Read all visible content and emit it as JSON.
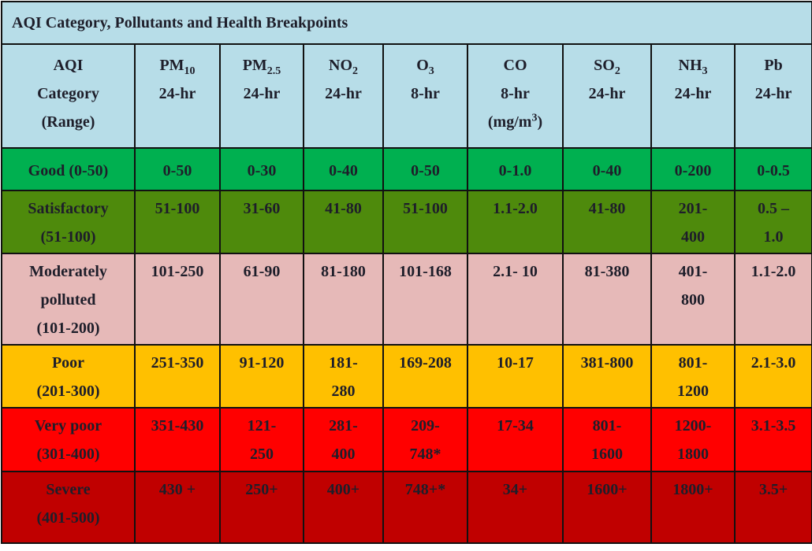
{
  "title": "AQI Category, Pollutants and Health Breakpoints",
  "table": {
    "header": [
      {
        "lines": [
          "AQI",
          "Category",
          "(Range)"
        ]
      },
      {
        "lines": [
          {
            "base": "PM",
            "sub": "10"
          },
          "24-hr"
        ]
      },
      {
        "lines": [
          {
            "base": "PM",
            "sub": "2.5"
          },
          "24-hr"
        ]
      },
      {
        "lines": [
          {
            "base": "NO",
            "sub": "2"
          },
          "24-hr"
        ]
      },
      {
        "lines": [
          {
            "base": "O",
            "sub": "3"
          },
          "8-hr"
        ]
      },
      {
        "lines": [
          "CO",
          "8-hr",
          {
            "base": "(mg/m",
            "sup": "3",
            "after": ")"
          }
        ]
      },
      {
        "lines": [
          {
            "base": "SO",
            "sub": "2"
          },
          "24-hr"
        ]
      },
      {
        "lines": [
          {
            "base": "NH",
            "sub": "3"
          },
          "24-hr"
        ]
      },
      {
        "lines": [
          "Pb",
          "24-hr"
        ]
      }
    ],
    "rows": [
      {
        "color": "#00b050",
        "cells": [
          [
            "Good (0-50)"
          ],
          [
            "0-50"
          ],
          [
            "0-30"
          ],
          [
            "0-40"
          ],
          [
            "0-50"
          ],
          [
            "0-1.0"
          ],
          [
            "0-40"
          ],
          [
            "0-200"
          ],
          [
            "0-0.5"
          ]
        ]
      },
      {
        "color": "#4e8a0c",
        "cells": [
          [
            "Satisfactory",
            "(51-100)"
          ],
          [
            "51-100"
          ],
          [
            "31-60"
          ],
          [
            "41-80"
          ],
          [
            "51-100"
          ],
          [
            "1.1-2.0"
          ],
          [
            "41-80"
          ],
          [
            "201-",
            "400"
          ],
          [
            "0.5 –",
            "1.0"
          ]
        ]
      },
      {
        "color": "#e6b9b8",
        "cells": [
          [
            "Moderately",
            "polluted",
            "(101-200)"
          ],
          [
            "101-250"
          ],
          [
            "61-90"
          ],
          [
            "81-180"
          ],
          [
            "101-168"
          ],
          [
            "2.1- 10"
          ],
          [
            "81-380"
          ],
          [
            "401-",
            "800"
          ],
          [
            "1.1-2.0"
          ]
        ]
      },
      {
        "color": "#ffc000",
        "cells": [
          [
            "Poor",
            "(201-300)"
          ],
          [
            "251-350"
          ],
          [
            "91-120"
          ],
          [
            "181-",
            "280"
          ],
          [
            "169-208"
          ],
          [
            "10-17"
          ],
          [
            "381-800"
          ],
          [
            "801-",
            "1200"
          ],
          [
            "2.1-3.0"
          ]
        ]
      },
      {
        "color": "#ff0000",
        "cells": [
          [
            "Very poor",
            "(301-400)"
          ],
          [
            "351-430"
          ],
          [
            "121-",
            "250"
          ],
          [
            "281-",
            "400"
          ],
          [
            "209-",
            "748*"
          ],
          [
            "17-34"
          ],
          [
            "801-",
            "1600"
          ],
          [
            "1200-",
            "1800"
          ],
          [
            "3.1-3.5"
          ]
        ]
      },
      {
        "color": "#c00000",
        "cells": [
          [
            "Severe",
            "(401-500)"
          ],
          [
            "430 +"
          ],
          [
            "250+"
          ],
          [
            "400+"
          ],
          [
            "748+*"
          ],
          [
            "34+"
          ],
          [
            "1600+"
          ],
          [
            "1800+"
          ],
          [
            "3.5+"
          ]
        ]
      }
    ]
  }
}
